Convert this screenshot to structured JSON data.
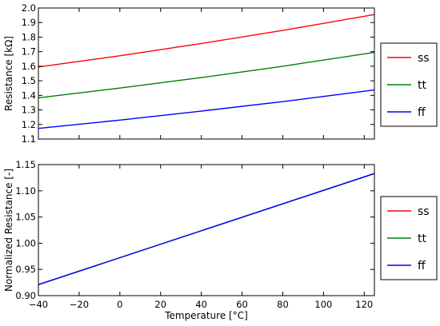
{
  "chart_data": [
    {
      "type": "line",
      "xlabel": "",
      "ylabel": "Resistance [kΩ]",
      "xlim": [
        -40,
        125
      ],
      "ylim": [
        1.1,
        2.0
      ],
      "x_ticks": [
        -40,
        -20,
        0,
        20,
        40,
        60,
        80,
        100,
        120
      ],
      "y_ticks": [
        1.1,
        1.2,
        1.3,
        1.4,
        1.5,
        1.6,
        1.7,
        1.8,
        1.9,
        2.0
      ],
      "y_tick_labels": [
        "1.1",
        "1.2",
        "1.3",
        "1.4",
        "1.5",
        "1.6",
        "1.7",
        "1.8",
        "1.9",
        "2.0"
      ],
      "show_x_tick_labels": false,
      "grid": false,
      "legend_position": "right",
      "series": [
        {
          "name": "ss",
          "color": "#ff0000",
          "x": [
            -40,
            0,
            40,
            80,
            125
          ],
          "y": [
            1.595,
            1.672,
            1.756,
            1.846,
            1.955
          ]
        },
        {
          "name": "tt",
          "color": "#008000",
          "x": [
            -40,
            0,
            40,
            80,
            125
          ],
          "y": [
            1.383,
            1.45,
            1.522,
            1.6,
            1.695
          ]
        },
        {
          "name": "ff",
          "color": "#0000ff",
          "x": [
            -40,
            0,
            40,
            80,
            125
          ],
          "y": [
            1.173,
            1.23,
            1.292,
            1.357,
            1.437
          ]
        }
      ]
    },
    {
      "type": "line",
      "xlabel": "Temperature [°C]",
      "ylabel": "Normalized Resistance [-]",
      "xlim": [
        -40,
        125
      ],
      "ylim": [
        0.9,
        1.15
      ],
      "x_ticks": [
        -40,
        -20,
        0,
        20,
        40,
        60,
        80,
        100,
        120
      ],
      "x_tick_labels": [
        "−40",
        "−20",
        "0",
        "20",
        "40",
        "60",
        "80",
        "100",
        "120"
      ],
      "y_ticks": [
        0.9,
        0.95,
        1.0,
        1.05,
        1.1,
        1.15
      ],
      "y_tick_labels": [
        "0.90",
        "0.95",
        "1.00",
        "1.05",
        "1.10",
        "1.15"
      ],
      "show_x_tick_labels": true,
      "grid": false,
      "legend_position": "right",
      "series": [
        {
          "name": "ss",
          "color": "#ff0000",
          "x": [
            -40,
            125
          ],
          "y": [
            0.921,
            1.133
          ]
        },
        {
          "name": "tt",
          "color": "#008000",
          "x": [
            -40,
            125
          ],
          "y": [
            0.921,
            1.133
          ]
        },
        {
          "name": "ff",
          "color": "#0000ff",
          "x": [
            -40,
            125
          ],
          "y": [
            0.921,
            1.133
          ]
        }
      ]
    }
  ]
}
